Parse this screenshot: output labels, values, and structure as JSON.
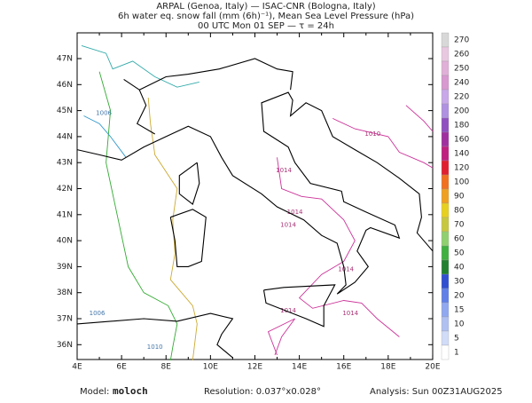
{
  "header": {
    "lines": [
      "ARPAL (Genoa, Italy)  —  ISAC-CNR (Bologna, Italy)",
      "6h water eq. snow fall (mm (6h)⁻¹), Mean Sea Level Pressure (hPa)",
      "00 UTC Mon 01 SEP  —  τ = 24h"
    ]
  },
  "map": {
    "lon_labels": [
      "4E",
      "6E",
      "8E",
      "10E",
      "12E",
      "14E",
      "16E",
      "18E",
      "20E"
    ],
    "lat_labels": [
      "47N",
      "46N",
      "45N",
      "44N",
      "43N",
      "42N",
      "41N",
      "40N",
      "39N",
      "38N",
      "37N",
      "36N"
    ],
    "contour_labels": [
      "1006",
      "1006",
      "1010",
      "1014",
      "1014",
      "1014",
      "1014",
      "1014",
      "1014",
      "1010"
    ]
  },
  "colorbar": {
    "labels": [
      "270",
      "260",
      "250",
      "240",
      "220",
      "200",
      "180",
      "160",
      "140",
      "120",
      "100",
      "90",
      "80",
      "70",
      "60",
      "50",
      "40",
      "30",
      "20",
      "15",
      "10",
      "5",
      "1"
    ],
    "colors": [
      "#d8d8d8",
      "#e8c8e0",
      "#e0b0d8",
      "#d898d0",
      "#c8a8e8",
      "#b090e0",
      "#9050c0",
      "#a030a0",
      "#c02080",
      "#e02030",
      "#f07020",
      "#f0a020",
      "#e8d020",
      "#c8c840",
      "#90d070",
      "#40b040",
      "#208030",
      "#3050d0",
      "#6080e8",
      "#90a8f0",
      "#b0c0f0",
      "#d0dcf8",
      "#ffffff"
    ]
  },
  "footer": {
    "model_label": "Model:",
    "model": "moloch",
    "resolution": "Resolution: 0.037°x0.028°",
    "analysis": "Analysis: Sun 00Z31AUG2025"
  }
}
